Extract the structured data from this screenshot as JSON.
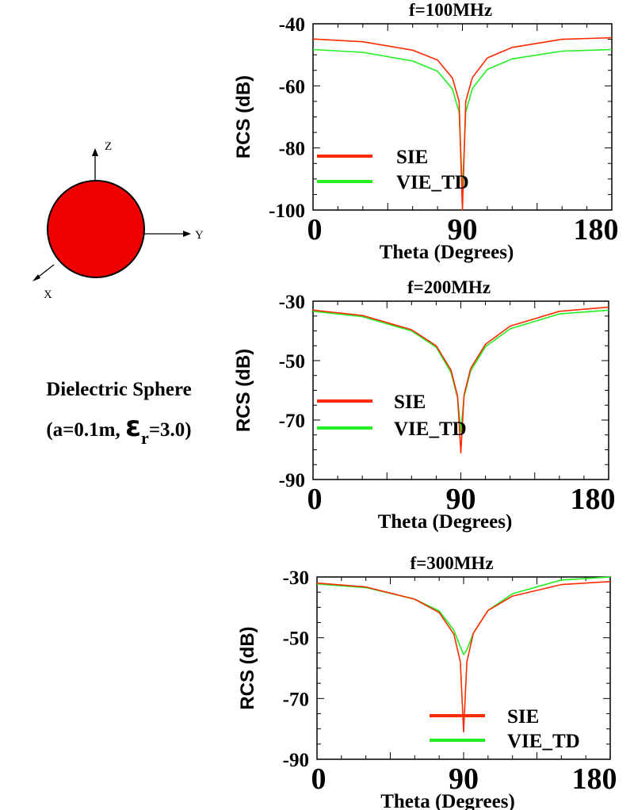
{
  "figure": {
    "caption_line1": "Dielectric Sphere",
    "caption_open": "(a=0.1m,",
    "caption_symbol": "ε",
    "caption_sub": "r",
    "caption_close": "=3.0)",
    "axis_z": "Z",
    "axis_y": "Y",
    "axis_x": "X",
    "sphere_color": "#ee0000"
  },
  "series_colors": {
    "SIE": "#ff2a00",
    "VIE_TD": "#22ee22"
  },
  "chart_data": [
    {
      "type": "line",
      "title": "f=100MHz",
      "xlabel": "Theta (Degrees)",
      "ylabel": "RCS (dB)",
      "xlim": [
        0,
        180
      ],
      "ylim": [
        -100,
        -40
      ],
      "xticks": [
        0,
        90,
        180
      ],
      "yticks": [
        -40,
        -60,
        -80,
        -100
      ],
      "legend": [
        "SIE",
        "VIE_TD"
      ],
      "legend_position": "bottom-left",
      "series": [
        {
          "name": "SIE",
          "x": [
            0,
            30,
            60,
            75,
            84,
            88,
            90,
            92,
            96,
            105,
            120,
            150,
            180
          ],
          "y": [
            -44.9,
            -45.8,
            -48.5,
            -51.7,
            -57.5,
            -65.0,
            -100.0,
            -65.0,
            -57.3,
            -51.0,
            -47.6,
            -45.0,
            -44.5
          ]
        },
        {
          "name": "VIE_TD",
          "x": [
            0,
            30,
            60,
            75,
            84,
            88,
            90,
            92,
            96,
            105,
            120,
            150,
            180
          ],
          "y": [
            -48.3,
            -49.2,
            -52.0,
            -55.3,
            -61.0,
            -68.5,
            -94.0,
            -68.5,
            -60.8,
            -54.7,
            -51.3,
            -48.8,
            -48.3
          ]
        }
      ]
    },
    {
      "type": "line",
      "title": "f=200MHz",
      "xlabel": "Theta (Degrees)",
      "ylabel": "RCS (dB)",
      "xlim": [
        0,
        180
      ],
      "ylim": [
        -90,
        -30
      ],
      "xticks": [
        0,
        90,
        180
      ],
      "yticks": [
        -30,
        -50,
        -70,
        -90
      ],
      "legend": [
        "SIE",
        "VIE_TD"
      ],
      "legend_position": "bottom-left",
      "series": [
        {
          "name": "SIE",
          "x": [
            0,
            30,
            60,
            75,
            84,
            88,
            90,
            92,
            96,
            105,
            120,
            150,
            180
          ],
          "y": [
            -33.0,
            -34.8,
            -39.6,
            -45.0,
            -53.2,
            -62.0,
            -81.0,
            -61.5,
            -52.6,
            -44.5,
            -38.4,
            -33.4,
            -32.0
          ]
        },
        {
          "name": "VIE_TD",
          "x": [
            0,
            30,
            60,
            75,
            84,
            88,
            90,
            92,
            96,
            105,
            120,
            150,
            180
          ],
          "y": [
            -33.4,
            -35.2,
            -40.0,
            -45.5,
            -54.0,
            -62.5,
            -74.0,
            -62.0,
            -53.5,
            -45.3,
            -39.3,
            -34.3,
            -33.0
          ]
        }
      ]
    },
    {
      "type": "line",
      "title": "f=300MHz",
      "xlabel": "Theta (Degrees)",
      "ylabel": "RCS (dB)",
      "xlim": [
        0,
        180
      ],
      "ylim": [
        -90,
        -30
      ],
      "xticks": [
        0,
        90,
        180
      ],
      "yticks": [
        -30,
        -50,
        -70,
        -90
      ],
      "legend": [
        "SIE",
        "VIE_TD"
      ],
      "legend_position": "bottom-right",
      "series": [
        {
          "name": "SIE",
          "x": [
            0,
            30,
            60,
            75,
            84,
            88,
            90,
            92,
            96,
            105,
            120,
            150,
            180
          ],
          "y": [
            -32.0,
            -33.3,
            -37.3,
            -41.7,
            -48.8,
            -58.0,
            -81.0,
            -58.0,
            -48.5,
            -41.0,
            -36.3,
            -32.5,
            -31.5
          ]
        },
        {
          "name": "VIE_TD",
          "x": [
            0,
            30,
            60,
            75,
            84,
            88,
            90,
            92,
            96,
            105,
            120,
            150,
            180
          ],
          "y": [
            -32.3,
            -33.5,
            -37.3,
            -41.2,
            -47.5,
            -53.0,
            -55.5,
            -54.0,
            -48.5,
            -41.0,
            -35.5,
            -31.0,
            -30.0
          ]
        }
      ]
    }
  ]
}
